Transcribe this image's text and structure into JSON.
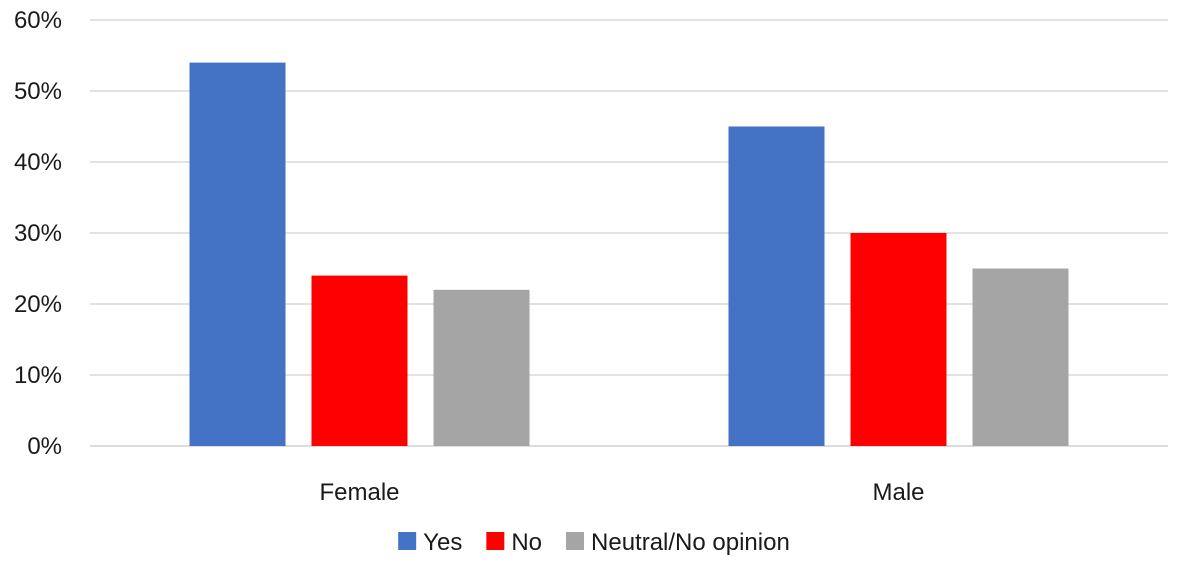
{
  "chart_data": {
    "type": "bar",
    "title": "",
    "xlabel": "",
    "ylabel": "",
    "categories": [
      "Female",
      "Male"
    ],
    "series": [
      {
        "name": "Yes",
        "values": [
          54,
          45
        ],
        "color": "#4472C4"
      },
      {
        "name": "No",
        "values": [
          24,
          30
        ],
        "color": "#FF0000"
      },
      {
        "name": "Neutral/No opinion",
        "values": [
          22,
          25
        ],
        "color": "#A5A5A5"
      }
    ],
    "ylim": [
      0,
      60
    ],
    "yticks": [
      "0%",
      "10%",
      "20%",
      "30%",
      "40%",
      "50%",
      "60%"
    ],
    "grid": true,
    "legend_position": "bottom"
  }
}
